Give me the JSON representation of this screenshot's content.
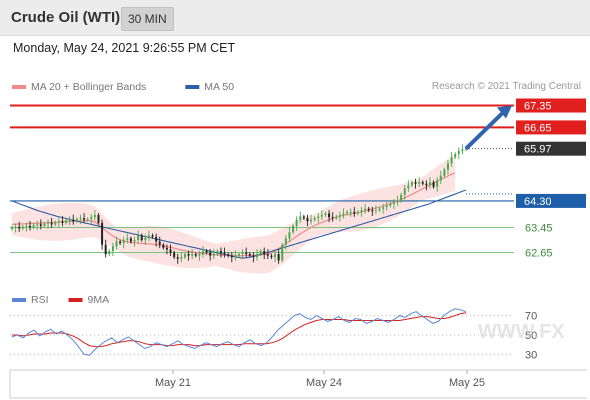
{
  "header": {
    "title": "Crude Oil (WTI)",
    "timeframe": "30 MIN"
  },
  "datetime": "Monday, May 24, 2021 9:26:55 PM CET",
  "colors": {
    "resistance": "#e21f1f",
    "support": "#1f5fa9",
    "pivot": "#3d8a3d",
    "last": "#333333",
    "ma20": "#f08a8a",
    "ma50": "#2f5fa6",
    "bb_fill": "#fcd8d8",
    "bull": "#49a94c",
    "bear": "#222222",
    "rsi": "#5b86d6",
    "rsi_ma": "#d62020",
    "arrow": "#2e63ad"
  },
  "chart_data": [
    {
      "type": "candlestick",
      "legend": [
        {
          "name": "MA 20 + Bollinger Bands",
          "color": "#f08a8a"
        },
        {
          "name": "MA 50",
          "color": "#2f5fa6"
        }
      ],
      "legend_placement": "top-left",
      "credit": "Research © 2021 Trading Central",
      "ylim": [
        61.9,
        67.75
      ],
      "levels": [
        {
          "label": "67.35",
          "value": 67.35,
          "kind": "resistance"
        },
        {
          "label": "66.65",
          "value": 66.65,
          "kind": "resistance"
        },
        {
          "label": "65.97",
          "value": 65.97,
          "kind": "last"
        },
        {
          "label": "64.30",
          "value": 64.3,
          "kind": "support"
        },
        {
          "label": "63.45",
          "value": 63.45,
          "kind": "pivot"
        },
        {
          "label": "62.65",
          "value": 62.65,
          "kind": "pivot"
        }
      ],
      "x_ticks": [
        "May 21",
        "May 24",
        "May 25"
      ],
      "close": [
        63.45,
        63.47,
        63.42,
        63.48,
        63.5,
        63.46,
        63.53,
        63.55,
        63.5,
        63.57,
        63.6,
        63.55,
        63.62,
        63.65,
        63.6,
        63.68,
        63.7,
        63.65,
        63.72,
        63.75,
        63.7,
        63.72,
        63.78,
        63.85,
        63.6,
        62.9,
        62.6,
        62.7,
        62.85,
        63,
        62.95,
        63.05,
        63.1,
        63.0,
        63.05,
        63.2,
        63.05,
        63.12,
        63.2,
        63.15,
        63.0,
        62.9,
        62.8,
        62.75,
        62.65,
        62.5,
        62.45,
        62.5,
        62.6,
        62.55,
        62.6,
        62.55,
        62.6,
        62.7,
        62.65,
        62.55,
        62.6,
        62.7,
        62.65,
        62.6,
        62.55,
        62.5,
        62.55,
        62.6,
        62.65,
        62.6,
        62.55,
        62.5,
        62.6,
        62.7,
        62.6,
        62.55,
        62.5,
        62.6,
        62.4,
        62.9,
        63.1,
        63.3,
        63.5,
        63.7,
        63.8,
        63.75,
        63.65,
        63.7,
        63.75,
        63.8,
        63.85,
        63.9,
        63.78,
        63.75,
        63.8,
        63.85,
        63.9,
        63.95,
        63.95,
        63.9,
        63.95,
        64.0,
        64.05,
        64.0,
        63.98,
        64.0,
        64.05,
        64.1,
        64.15,
        64.2,
        64.25,
        64.3,
        64.5,
        64.7,
        64.8,
        64.9,
        64.85,
        64.9,
        64.85,
        64.8,
        64.9,
        64.75,
        64.95,
        65.1,
        65.3,
        65.5,
        65.7,
        65.8,
        65.9,
        65.95,
        65.97
      ],
      "ma20": [
        63.55,
        63.56,
        63.56,
        63.57,
        63.57,
        63.58,
        63.58,
        63.59,
        63.59,
        63.6,
        63.61,
        63.61,
        63.62,
        63.62,
        63.63,
        63.64,
        63.64,
        63.65,
        63.66,
        63.66,
        63.67,
        63.67,
        63.66,
        63.62,
        63.55,
        63.45,
        63.35,
        63.26,
        63.18,
        63.12,
        63.06,
        63.02,
        62.99,
        62.97,
        62.96,
        62.95,
        62.94,
        62.94,
        62.93,
        62.92,
        62.9,
        62.88,
        62.86,
        62.84,
        62.82,
        62.79,
        62.76,
        62.73,
        62.71,
        62.69,
        62.67,
        62.65,
        62.63,
        62.61,
        62.6,
        62.59,
        62.58,
        62.57,
        62.57,
        62.56,
        62.56,
        62.56,
        62.55,
        62.55,
        62.55,
        62.56,
        62.56,
        62.56,
        62.57,
        62.58,
        62.58,
        62.6,
        62.64,
        62.7,
        62.78,
        62.85,
        62.93,
        63.01,
        63.09,
        63.17,
        63.25,
        63.32,
        63.39,
        63.45,
        63.51,
        63.56,
        63.61,
        63.66,
        63.7,
        63.74,
        63.78,
        63.81,
        63.84,
        63.86,
        63.88,
        63.9,
        63.92,
        63.95,
        63.98,
        64.01,
        64.04,
        64.07,
        64.1,
        64.14,
        64.18,
        64.22,
        64.26,
        64.3,
        64.35,
        64.4,
        64.45,
        64.51,
        64.57,
        64.63,
        64.69,
        64.75,
        64.81,
        64.87,
        64.93,
        64.99,
        65.04,
        65.1,
        65.15,
        65.19
      ],
      "ma50": [
        64.3,
        64.25,
        64.2,
        64.15,
        64.1,
        64.05,
        64.0,
        63.96,
        63.92,
        63.88,
        63.84,
        63.8,
        63.77,
        63.74,
        63.7,
        63.67,
        63.64,
        63.61,
        63.58,
        63.55,
        63.52,
        63.49,
        63.46,
        63.43,
        63.4,
        63.37,
        63.34,
        63.31,
        63.28,
        63.25,
        63.22,
        63.19,
        63.16,
        63.13,
        63.1,
        63.07,
        63.04,
        63.01,
        62.98,
        62.95,
        62.92,
        62.89,
        62.86,
        62.83,
        62.8,
        62.77,
        62.74,
        62.71,
        62.68,
        62.65,
        62.62,
        62.59,
        62.56,
        62.53,
        62.5,
        62.48,
        62.48,
        62.5,
        62.53,
        62.56,
        62.6,
        62.64,
        62.68,
        62.72,
        62.76,
        62.8,
        62.84,
        62.88,
        62.92,
        62.96,
        63.0,
        63.04,
        63.08,
        63.12,
        63.16,
        63.2,
        63.24,
        63.28,
        63.32,
        63.36,
        63.4,
        63.44,
        63.48,
        63.52,
        63.56,
        63.6,
        63.64,
        63.68,
        63.72,
        63.76,
        63.8,
        63.84,
        63.88,
        63.92,
        63.96,
        64.0,
        64.04,
        64.08,
        64.12,
        64.16,
        64.2,
        64.25,
        64.3,
        64.35,
        64.4,
        64.45,
        64.5,
        64.55,
        64.6,
        64.65
      ]
    },
    {
      "type": "line",
      "legend": [
        {
          "name": "RSI",
          "color": "#5b86d6"
        },
        {
          "name": "9MA",
          "color": "#d62020"
        }
      ],
      "ylim": [
        20,
        82
      ],
      "y_ticks": [
        70,
        50,
        30
      ],
      "x_ticks": [
        "May 21",
        "May 24",
        "May 25"
      ],
      "rsi": [
        48,
        50,
        47,
        52,
        55,
        49,
        53,
        56,
        51,
        54,
        50,
        45,
        38,
        30,
        29,
        35,
        40,
        44,
        47,
        42,
        45,
        48,
        44,
        40,
        36,
        38,
        42,
        40,
        38,
        41,
        44,
        40,
        38,
        36,
        39,
        42,
        40,
        38,
        41,
        43,
        40,
        38,
        42,
        45,
        41,
        39,
        42,
        48,
        55,
        60,
        65,
        70,
        72,
        68,
        66,
        70,
        67,
        64,
        66,
        69,
        65,
        63,
        67,
        66,
        62,
        64,
        67,
        65,
        63,
        66,
        70,
        68,
        72,
        74,
        70,
        66,
        62,
        64,
        70,
        74,
        77,
        76,
        74
      ],
      "rsi_ma": [
        50,
        50,
        49,
        50,
        51,
        51,
        51,
        52,
        52,
        52,
        51,
        49,
        46,
        42,
        39,
        38,
        38,
        39,
        41,
        42,
        43,
        44,
        44,
        43,
        41,
        40,
        40,
        40,
        39,
        39,
        40,
        40,
        40,
        39,
        39,
        40,
        40,
        40,
        40,
        40,
        40,
        40,
        41,
        41,
        41,
        41,
        41,
        42,
        44,
        47,
        51,
        55,
        58,
        61,
        63,
        65,
        66,
        66,
        66,
        66,
        66,
        65,
        65,
        65,
        65,
        65,
        65,
        65,
        65,
        65,
        65,
        66,
        67,
        68,
        69,
        69,
        68,
        67,
        67,
        68,
        70,
        72,
        73
      ]
    }
  ],
  "watermark": "WWW.FX"
}
